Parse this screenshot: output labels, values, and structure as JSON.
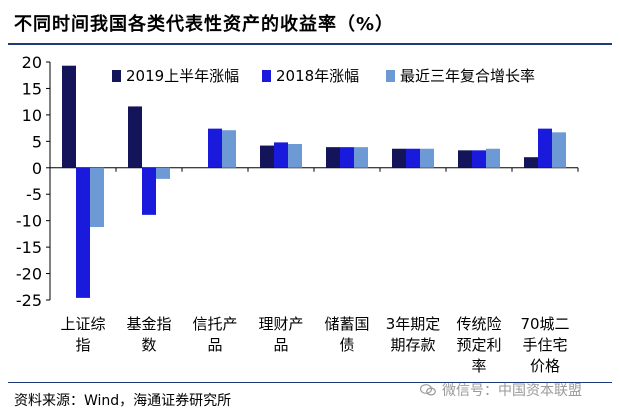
{
  "title": "不同时间我国各类代表性资产的收益率（%）",
  "source": "资料来源：Wind，海通证券研究所",
  "watermark": "微信号：中国资本联盟",
  "chart_data": {
    "type": "bar",
    "categories": [
      [
        "上证综",
        "指"
      ],
      [
        "基金指",
        "数"
      ],
      [
        "信托产",
        "品"
      ],
      [
        "理财产",
        "品"
      ],
      [
        "储蓄国",
        "债"
      ],
      [
        "3年期定",
        "期存款"
      ],
      [
        "传统险",
        "预定利",
        "率"
      ],
      [
        "70城二",
        "手住宅",
        "价格"
      ]
    ],
    "series": [
      {
        "name": "2019上半年涨幅",
        "color": "#14145a",
        "values": [
          19.3,
          11.6,
          null,
          4.2,
          3.9,
          3.6,
          3.3,
          2.0
        ]
      },
      {
        "name": "2018年涨幅",
        "color": "#1a1adc",
        "values": [
          -24.6,
          -8.9,
          7.4,
          4.8,
          3.9,
          3.6,
          3.3,
          7.4
        ]
      },
      {
        "name": "最近三年复合增长率",
        "color": "#6d9ad4",
        "values": [
          -11.2,
          -2.1,
          7.1,
          4.5,
          3.9,
          3.6,
          3.6,
          6.7
        ]
      }
    ],
    "ylim": [
      -25,
      20
    ],
    "yticks": [
      20,
      15,
      10,
      5,
      0,
      -5,
      -10,
      -15,
      -20,
      -25
    ],
    "legend_position": "top-right",
    "grid": false
  }
}
